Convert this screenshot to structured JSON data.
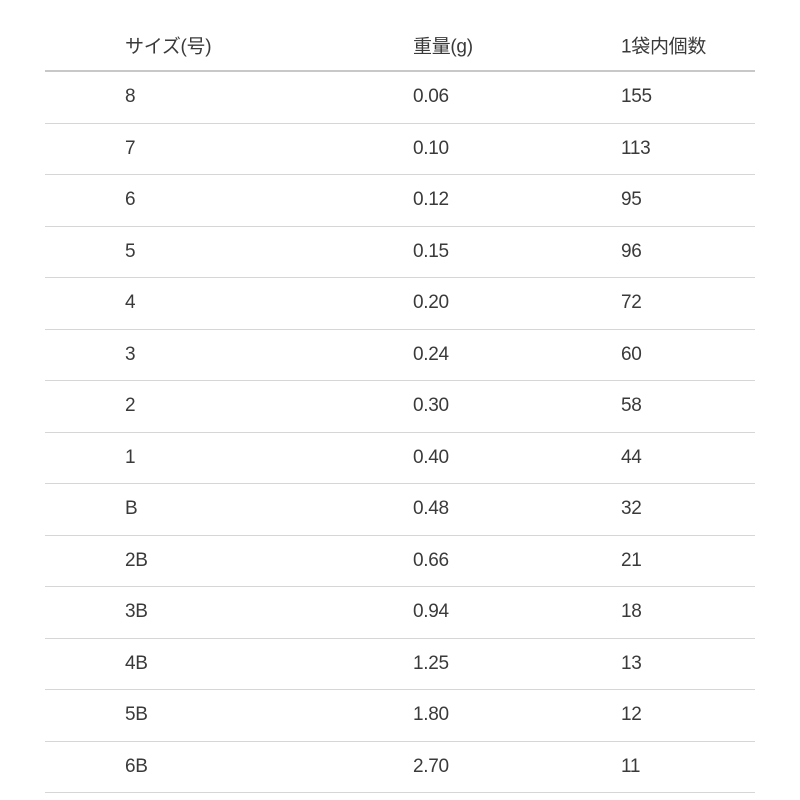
{
  "headers": [
    "サイズ(号)",
    "重量(g)",
    "1袋内個数"
  ],
  "rows": [
    [
      "8",
      "0.06",
      "155"
    ],
    [
      "7",
      "0.10",
      "113"
    ],
    [
      "6",
      "0.12",
      "95"
    ],
    [
      "5",
      "0.15",
      "96"
    ],
    [
      "4",
      "0.20",
      "72"
    ],
    [
      "3",
      "0.24",
      "60"
    ],
    [
      "2",
      "0.30",
      "58"
    ],
    [
      "1",
      "0.40",
      "44"
    ],
    [
      "B",
      "0.48",
      "32"
    ],
    [
      "2B",
      "0.66",
      "21"
    ],
    [
      "3B",
      "0.94",
      "18"
    ],
    [
      "4B",
      "1.25",
      "13"
    ],
    [
      "5B",
      "1.80",
      "12"
    ],
    [
      "6B",
      "2.70",
      "11"
    ]
  ]
}
